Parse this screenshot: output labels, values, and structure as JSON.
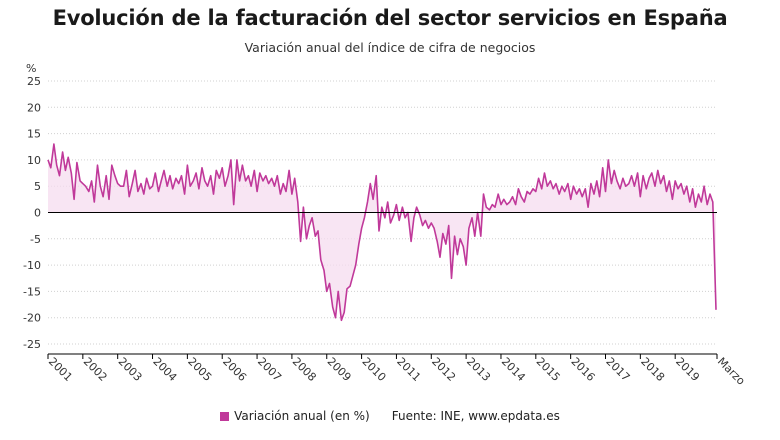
{
  "title": "Evolución de la facturación del sector servicios en España",
  "subtitle": "Variación anual del índice de cifra de negocios",
  "source": "Fuente: INE, www.epdata.es",
  "colors": {
    "line": "#c0399a",
    "fill": "#f6dcef",
    "zero_line": "#000000",
    "grid": "#d0d0d0"
  },
  "chart_data": {
    "type": "area",
    "ylabel": "%",
    "ylim": [
      -25,
      25
    ],
    "yticks": [
      -25,
      -20,
      -15,
      -10,
      -5,
      0,
      5,
      10,
      15,
      20,
      25
    ],
    "xtick_labels": [
      "2001",
      "2002",
      "2003",
      "2004",
      "2005",
      "2006",
      "2007",
      "2008",
      "2009",
      "2010",
      "2011",
      "2012",
      "2013",
      "2014",
      "2015",
      "2016",
      "2017",
      "2018",
      "2019",
      "Marzo"
    ],
    "xlim": [
      2001.0,
      2020.2
    ],
    "grid": true,
    "legend": "bottom",
    "series": [
      {
        "name": "Variación anual (en %)",
        "points": [
          [
            2001.0,
            10.0
          ],
          [
            2001.08,
            8.5
          ],
          [
            2001.17,
            13.0
          ],
          [
            2001.25,
            9.0
          ],
          [
            2001.33,
            7.0
          ],
          [
            2001.42,
            11.5
          ],
          [
            2001.5,
            8.0
          ],
          [
            2001.58,
            10.5
          ],
          [
            2001.67,
            7.5
          ],
          [
            2001.75,
            2.5
          ],
          [
            2001.83,
            9.5
          ],
          [
            2001.92,
            6.0
          ],
          [
            2002.0,
            5.5
          ],
          [
            2002.08,
            5.0
          ],
          [
            2002.17,
            4.0
          ],
          [
            2002.25,
            6.0
          ],
          [
            2002.33,
            2.0
          ],
          [
            2002.42,
            9.0
          ],
          [
            2002.5,
            5.0
          ],
          [
            2002.58,
            3.0
          ],
          [
            2002.67,
            7.0
          ],
          [
            2002.75,
            2.5
          ],
          [
            2002.83,
            9.0
          ],
          [
            2002.92,
            7.0
          ],
          [
            2003.0,
            5.5
          ],
          [
            2003.08,
            5.0
          ],
          [
            2003.17,
            5.0
          ],
          [
            2003.25,
            8.0
          ],
          [
            2003.33,
            3.0
          ],
          [
            2003.42,
            5.5
          ],
          [
            2003.5,
            8.0
          ],
          [
            2003.58,
            4.0
          ],
          [
            2003.67,
            5.5
          ],
          [
            2003.75,
            3.5
          ],
          [
            2003.83,
            6.5
          ],
          [
            2003.92,
            4.5
          ],
          [
            2004.0,
            5.0
          ],
          [
            2004.08,
            7.5
          ],
          [
            2004.17,
            4.0
          ],
          [
            2004.25,
            6.0
          ],
          [
            2004.33,
            8.0
          ],
          [
            2004.42,
            5.0
          ],
          [
            2004.5,
            7.0
          ],
          [
            2004.58,
            4.5
          ],
          [
            2004.67,
            6.5
          ],
          [
            2004.75,
            5.5
          ],
          [
            2004.83,
            7.0
          ],
          [
            2004.92,
            3.5
          ],
          [
            2005.0,
            9.0
          ],
          [
            2005.08,
            5.0
          ],
          [
            2005.17,
            6.0
          ],
          [
            2005.25,
            7.5
          ],
          [
            2005.33,
            4.5
          ],
          [
            2005.42,
            8.5
          ],
          [
            2005.5,
            6.0
          ],
          [
            2005.58,
            5.0
          ],
          [
            2005.67,
            7.0
          ],
          [
            2005.75,
            3.5
          ],
          [
            2005.83,
            8.0
          ],
          [
            2005.92,
            6.5
          ],
          [
            2006.0,
            8.5
          ],
          [
            2006.08,
            5.0
          ],
          [
            2006.17,
            7.0
          ],
          [
            2006.25,
            10.0
          ],
          [
            2006.33,
            1.5
          ],
          [
            2006.42,
            10.0
          ],
          [
            2006.5,
            6.0
          ],
          [
            2006.58,
            9.0
          ],
          [
            2006.67,
            6.0
          ],
          [
            2006.75,
            7.0
          ],
          [
            2006.83,
            5.0
          ],
          [
            2006.92,
            8.0
          ],
          [
            2007.0,
            4.0
          ],
          [
            2007.08,
            7.5
          ],
          [
            2007.17,
            6.0
          ],
          [
            2007.25,
            7.0
          ],
          [
            2007.33,
            5.5
          ],
          [
            2007.42,
            6.5
          ],
          [
            2007.5,
            5.0
          ],
          [
            2007.58,
            7.0
          ],
          [
            2007.67,
            3.5
          ],
          [
            2007.75,
            5.5
          ],
          [
            2007.83,
            4.0
          ],
          [
            2007.92,
            8.0
          ],
          [
            2008.0,
            3.5
          ],
          [
            2008.08,
            6.5
          ],
          [
            2008.17,
            2.0
          ],
          [
            2008.25,
            -5.5
          ],
          [
            2008.33,
            1.0
          ],
          [
            2008.42,
            -5.0
          ],
          [
            2008.5,
            -2.5
          ],
          [
            2008.58,
            -1.0
          ],
          [
            2008.67,
            -4.5
          ],
          [
            2008.75,
            -3.5
          ],
          [
            2008.83,
            -9.0
          ],
          [
            2008.92,
            -11.0
          ],
          [
            2009.0,
            -15.0
          ],
          [
            2009.08,
            -13.5
          ],
          [
            2009.17,
            -18.0
          ],
          [
            2009.25,
            -20.0
          ],
          [
            2009.33,
            -15.0
          ],
          [
            2009.42,
            -20.5
          ],
          [
            2009.5,
            -19.0
          ],
          [
            2009.58,
            -14.5
          ],
          [
            2009.67,
            -14.0
          ],
          [
            2009.75,
            -12.0
          ],
          [
            2009.83,
            -10.0
          ],
          [
            2009.92,
            -6.0
          ],
          [
            2010.0,
            -3.0
          ],
          [
            2010.08,
            -1.0
          ],
          [
            2010.17,
            2.0
          ],
          [
            2010.25,
            5.5
          ],
          [
            2010.33,
            2.5
          ],
          [
            2010.42,
            7.0
          ],
          [
            2010.5,
            -3.5
          ],
          [
            2010.58,
            1.0
          ],
          [
            2010.67,
            -1.0
          ],
          [
            2010.75,
            2.0
          ],
          [
            2010.83,
            -2.0
          ],
          [
            2010.92,
            -0.5
          ],
          [
            2011.0,
            1.5
          ],
          [
            2011.08,
            -1.5
          ],
          [
            2011.17,
            1.0
          ],
          [
            2011.25,
            -1.0
          ],
          [
            2011.33,
            0.0
          ],
          [
            2011.42,
            -5.5
          ],
          [
            2011.5,
            -1.0
          ],
          [
            2011.58,
            1.0
          ],
          [
            2011.67,
            -0.5
          ],
          [
            2011.75,
            -2.5
          ],
          [
            2011.83,
            -1.5
          ],
          [
            2011.92,
            -3.0
          ],
          [
            2012.0,
            -2.0
          ],
          [
            2012.08,
            -3.0
          ],
          [
            2012.17,
            -5.5
          ],
          [
            2012.25,
            -8.5
          ],
          [
            2012.33,
            -4.0
          ],
          [
            2012.42,
            -6.0
          ],
          [
            2012.5,
            -2.5
          ],
          [
            2012.58,
            -12.5
          ],
          [
            2012.67,
            -4.5
          ],
          [
            2012.75,
            -8.0
          ],
          [
            2012.83,
            -5.0
          ],
          [
            2012.92,
            -6.5
          ],
          [
            2013.0,
            -10.0
          ],
          [
            2013.08,
            -3.0
          ],
          [
            2013.17,
            -1.0
          ],
          [
            2013.25,
            -4.5
          ],
          [
            2013.33,
            0.0
          ],
          [
            2013.42,
            -4.5
          ],
          [
            2013.5,
            3.5
          ],
          [
            2013.58,
            1.0
          ],
          [
            2013.67,
            0.5
          ],
          [
            2013.75,
            1.5
          ],
          [
            2013.83,
            1.0
          ],
          [
            2013.92,
            3.5
          ],
          [
            2014.0,
            1.5
          ],
          [
            2014.08,
            2.5
          ],
          [
            2014.17,
            1.5
          ],
          [
            2014.25,
            2.0
          ],
          [
            2014.33,
            3.0
          ],
          [
            2014.42,
            1.5
          ],
          [
            2014.5,
            4.5
          ],
          [
            2014.58,
            3.0
          ],
          [
            2014.67,
            2.0
          ],
          [
            2014.75,
            4.0
          ],
          [
            2014.83,
            3.5
          ],
          [
            2014.92,
            4.5
          ],
          [
            2015.0,
            4.0
          ],
          [
            2015.08,
            6.5
          ],
          [
            2015.17,
            4.5
          ],
          [
            2015.25,
            7.5
          ],
          [
            2015.33,
            5.0
          ],
          [
            2015.42,
            6.0
          ],
          [
            2015.5,
            4.5
          ],
          [
            2015.58,
            5.5
          ],
          [
            2015.67,
            3.5
          ],
          [
            2015.75,
            5.0
          ],
          [
            2015.83,
            4.0
          ],
          [
            2015.92,
            5.5
          ],
          [
            2016.0,
            2.5
          ],
          [
            2016.08,
            5.0
          ],
          [
            2016.17,
            3.5
          ],
          [
            2016.25,
            4.5
          ],
          [
            2016.33,
            3.0
          ],
          [
            2016.42,
            4.5
          ],
          [
            2016.5,
            1.0
          ],
          [
            2016.58,
            5.5
          ],
          [
            2016.67,
            3.5
          ],
          [
            2016.75,
            6.0
          ],
          [
            2016.83,
            3.0
          ],
          [
            2016.92,
            8.5
          ],
          [
            2017.0,
            4.0
          ],
          [
            2017.08,
            10.0
          ],
          [
            2017.17,
            5.5
          ],
          [
            2017.25,
            8.0
          ],
          [
            2017.33,
            6.0
          ],
          [
            2017.42,
            4.5
          ],
          [
            2017.5,
            6.5
          ],
          [
            2017.58,
            5.0
          ],
          [
            2017.67,
            5.5
          ],
          [
            2017.75,
            7.0
          ],
          [
            2017.83,
            5.0
          ],
          [
            2017.92,
            7.5
          ],
          [
            2018.0,
            3.0
          ],
          [
            2018.08,
            7.0
          ],
          [
            2018.17,
            4.5
          ],
          [
            2018.25,
            6.5
          ],
          [
            2018.33,
            7.5
          ],
          [
            2018.42,
            5.0
          ],
          [
            2018.5,
            8.0
          ],
          [
            2018.58,
            5.5
          ],
          [
            2018.67,
            7.0
          ],
          [
            2018.75,
            4.0
          ],
          [
            2018.83,
            6.0
          ],
          [
            2018.92,
            2.5
          ],
          [
            2019.0,
            6.0
          ],
          [
            2019.08,
            4.5
          ],
          [
            2019.17,
            5.5
          ],
          [
            2019.25,
            3.5
          ],
          [
            2019.33,
            5.0
          ],
          [
            2019.42,
            2.0
          ],
          [
            2019.5,
            4.5
          ],
          [
            2019.58,
            1.0
          ],
          [
            2019.67,
            3.5
          ],
          [
            2019.75,
            2.0
          ],
          [
            2019.83,
            5.0
          ],
          [
            2019.92,
            1.5
          ],
          [
            2020.0,
            3.5
          ],
          [
            2020.08,
            2.0
          ],
          [
            2020.17,
            -18.5
          ]
        ]
      }
    ]
  }
}
